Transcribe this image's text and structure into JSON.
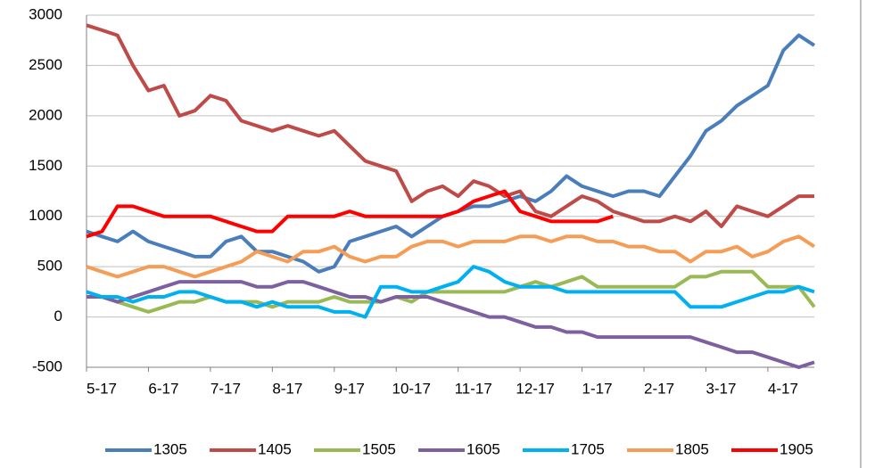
{
  "chart_data": {
    "type": "line",
    "categories": [
      "5-17",
      null,
      null,
      null,
      "6-17",
      null,
      null,
      null,
      "7-17",
      null,
      null,
      null,
      "8-17",
      null,
      null,
      null,
      "9-17",
      null,
      null,
      null,
      "10-17",
      null,
      null,
      null,
      "11-17",
      null,
      null,
      null,
      "12-17",
      null,
      null,
      null,
      "1-17",
      null,
      null,
      null,
      "2-17",
      null,
      null,
      null,
      "3-17",
      null,
      null,
      null,
      "4-17",
      null,
      null,
      null
    ],
    "series": [
      {
        "name": "1305",
        "color": "#4a7ebb",
        "values": [
          850,
          800,
          750,
          850,
          750,
          700,
          650,
          600,
          600,
          750,
          800,
          650,
          650,
          600,
          550,
          450,
          500,
          750,
          800,
          850,
          900,
          800,
          900,
          1000,
          1050,
          1100,
          1100,
          1150,
          1200,
          1150,
          1250,
          1400,
          1300,
          1250,
          1200,
          1250,
          1250,
          1200,
          1400,
          1600,
          1850,
          1950,
          2100,
          2200,
          2300,
          2650,
          2800,
          2700
        ]
      },
      {
        "name": "1405",
        "color": "#be4b48",
        "values": [
          2900,
          2850,
          2800,
          2500,
          2250,
          2300,
          2000,
          2050,
          2200,
          2150,
          1950,
          1900,
          1850,
          1900,
          1850,
          1800,
          1850,
          1700,
          1550,
          1500,
          1450,
          1150,
          1250,
          1300,
          1200,
          1350,
          1300,
          1200,
          1250,
          1050,
          1000,
          1100,
          1200,
          1150,
          1050,
          1000,
          950,
          950,
          1000,
          950,
          1050,
          900,
          1100,
          1050,
          1000,
          1100,
          1200,
          1200
        ]
      },
      {
        "name": "1505",
        "color": "#98b954",
        "values": [
          200,
          200,
          150,
          100,
          50,
          100,
          150,
          150,
          200,
          150,
          150,
          150,
          100,
          150,
          150,
          150,
          200,
          150,
          150,
          150,
          200,
          150,
          250,
          250,
          250,
          250,
          250,
          250,
          300,
          350,
          300,
          350,
          400,
          300,
          300,
          300,
          300,
          300,
          300,
          400,
          400,
          450,
          450,
          450,
          300,
          300,
          300,
          100
        ]
      },
      {
        "name": "1605",
        "color": "#7d60a0",
        "values": [
          200,
          200,
          150,
          200,
          250,
          300,
          350,
          350,
          350,
          350,
          350,
          300,
          300,
          350,
          350,
          300,
          250,
          200,
          200,
          150,
          200,
          200,
          200,
          150,
          100,
          50,
          0,
          0,
          -50,
          -100,
          -100,
          -150,
          -150,
          -200,
          -200,
          -200,
          -200,
          -200,
          -200,
          -200,
          -250,
          -300,
          -350,
          -350,
          -400,
          -450,
          -500,
          -450
        ]
      },
      {
        "name": "1705",
        "color": "#00b0f0",
        "values": [
          250,
          200,
          200,
          150,
          200,
          200,
          250,
          250,
          200,
          150,
          150,
          100,
          150,
          100,
          100,
          100,
          50,
          50,
          0,
          300,
          300,
          250,
          250,
          300,
          350,
          500,
          450,
          350,
          300,
          300,
          300,
          250,
          250,
          250,
          250,
          250,
          250,
          250,
          250,
          100,
          100,
          100,
          150,
          200,
          250,
          250,
          300,
          250
        ]
      },
      {
        "name": "1805",
        "color": "#f59d56",
        "values": [
          500,
          450,
          400,
          450,
          500,
          500,
          450,
          400,
          450,
          500,
          550,
          650,
          600,
          550,
          650,
          650,
          700,
          600,
          550,
          600,
          600,
          700,
          750,
          750,
          700,
          750,
          750,
          750,
          800,
          800,
          750,
          800,
          800,
          750,
          750,
          700,
          700,
          650,
          650,
          550,
          650,
          650,
          700,
          600,
          650,
          750,
          800,
          700
        ]
      },
      {
        "name": "1905",
        "color": "#ff0000",
        "values": [
          800,
          850,
          1100,
          1100,
          1050,
          1000,
          1000,
          1000,
          1000,
          950,
          900,
          850,
          850,
          1000,
          1000,
          1000,
          1000,
          1050,
          1000,
          1000,
          1000,
          1000,
          1000,
          1000,
          1050,
          1150,
          1200,
          1250,
          1050,
          1000,
          950,
          950,
          950,
          950,
          1000,
          null,
          null,
          null,
          null,
          null,
          null,
          null,
          null,
          null,
          null,
          null,
          null,
          null
        ]
      }
    ],
    "ylim": [
      -500,
      3000
    ],
    "yticks": [
      -500,
      0,
      500,
      1000,
      1500,
      2000,
      2500,
      3000
    ],
    "grid": true
  }
}
